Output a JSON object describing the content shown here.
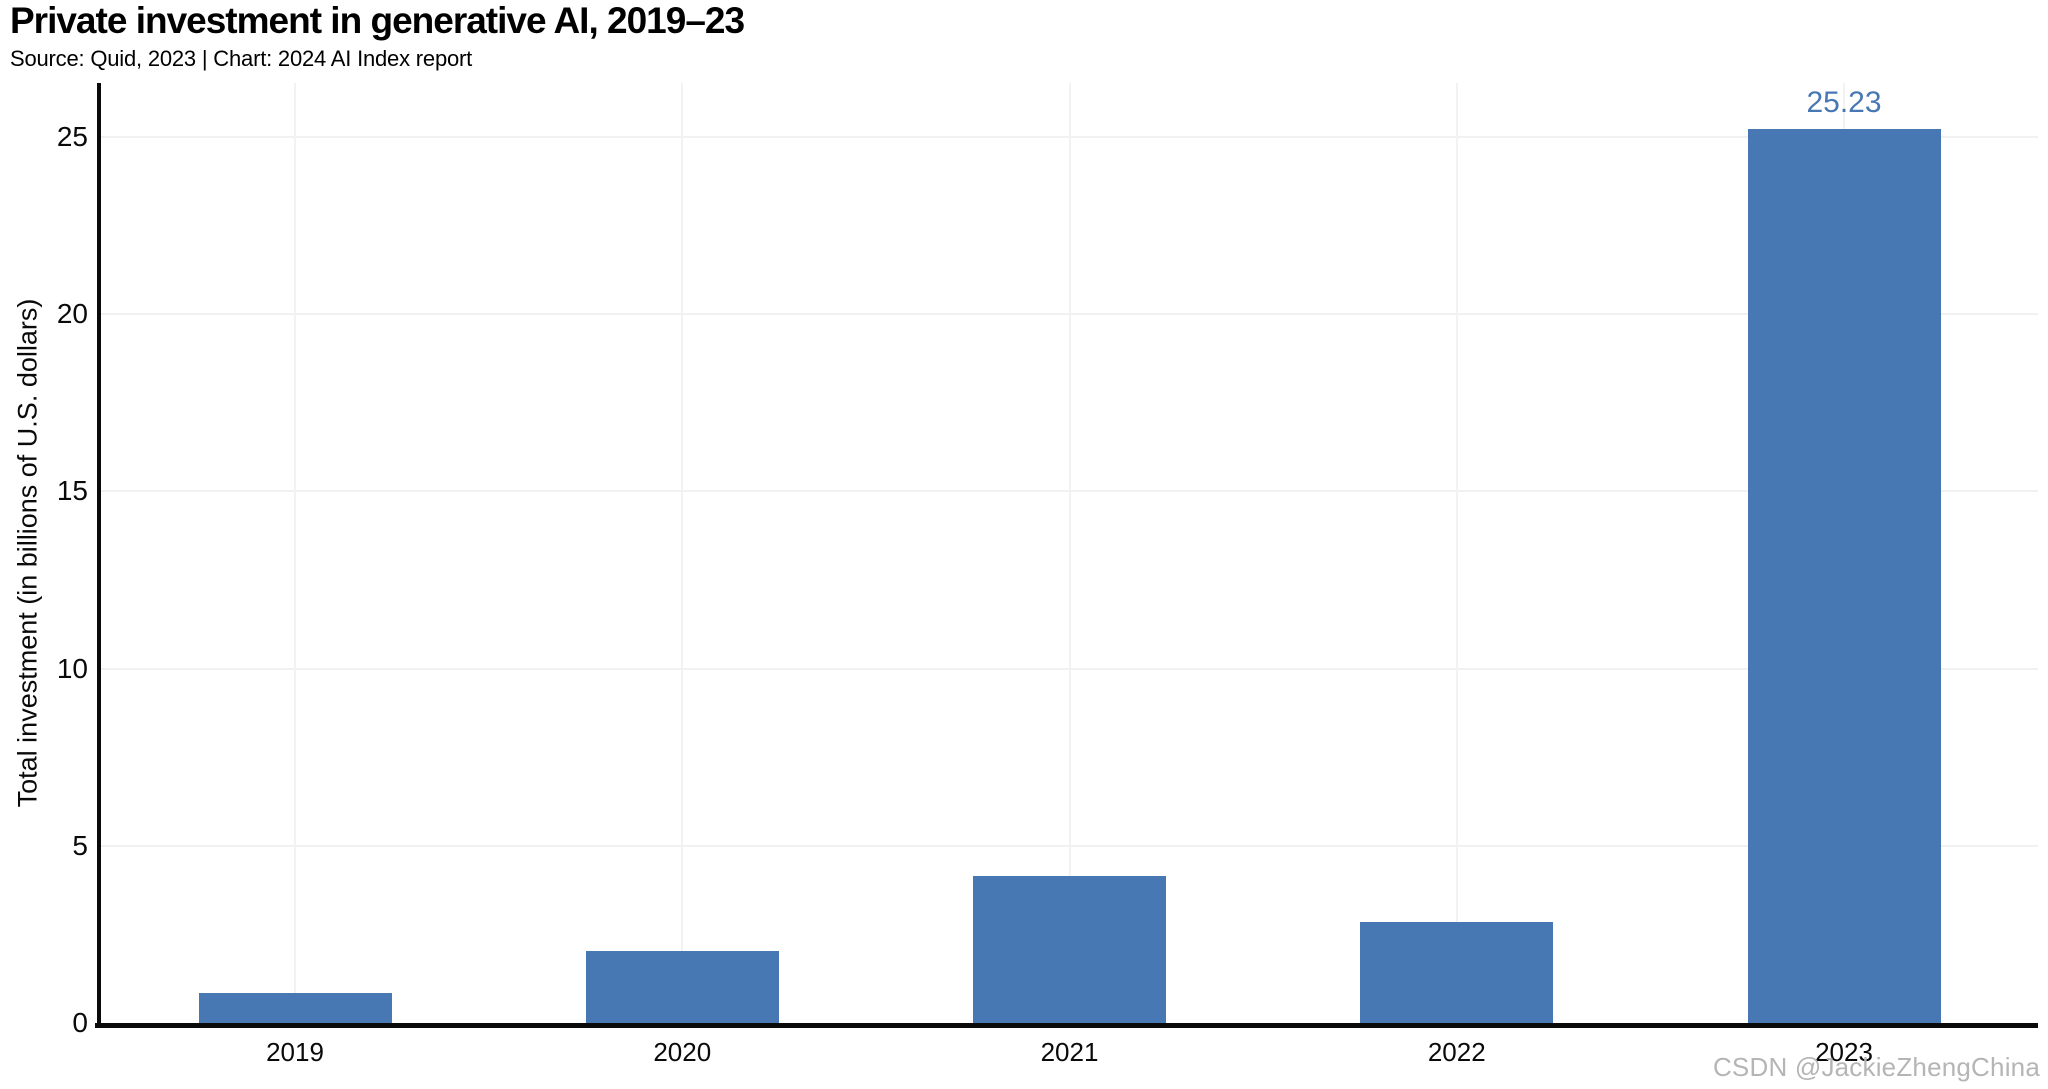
{
  "header": {
    "title": "Private investment in generative AI, 2019–23",
    "subtitle": "Source: Quid, 2023 | Chart: 2024 AI Index report"
  },
  "chart_data": {
    "type": "bar",
    "title": "Private investment in generative AI, 2019–23",
    "source_line": "Source: Quid, 2023 | Chart: 2024 AI Index report",
    "categories": [
      "2019",
      "2020",
      "2021",
      "2022",
      "2023"
    ],
    "values": [
      0.85,
      2.03,
      4.15,
      2.85,
      25.23
    ],
    "ylabel": "Total investment (in billions of U.S. dollars)",
    "xlabel": "",
    "yticks": [
      0,
      5,
      10,
      15,
      20,
      25
    ],
    "ylim": [
      0,
      26.5
    ],
    "grid": true,
    "legend": "none",
    "bar_color": "#4878B4",
    "label_color": "#4878B4",
    "annotations": [
      {
        "category": "2023",
        "text": "25.23"
      }
    ]
  },
  "watermark": {
    "text": "CSDN @JackieZhengChina"
  }
}
